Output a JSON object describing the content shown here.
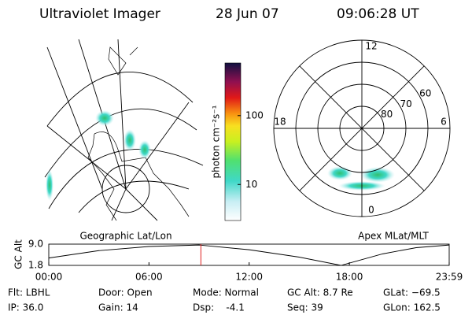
{
  "header": {
    "title": "Ultraviolet Imager",
    "date": "28 Jun 07",
    "time": "09:06:28 UT"
  },
  "geo_panel": {
    "label": "Geographic Lat/Lon"
  },
  "colorbar": {
    "label": "photon cm⁻²s⁻¹",
    "range": [
      3,
      580
    ],
    "log": true,
    "ticks": [
      10,
      100
    ]
  },
  "polar_panel": {
    "label": "Apex MLat/MLT",
    "min_lat": 50,
    "rings": [
      80,
      70,
      60
    ],
    "mlt_labels": [
      {
        "angle": 0,
        "label": "12"
      },
      {
        "angle": 90,
        "label": "6"
      },
      {
        "angle": 180,
        "label": "0"
      },
      {
        "angle": 270,
        "label": "18"
      }
    ]
  },
  "altitude": {
    "ylabel": "GC Alt",
    "ylim": [
      1.8,
      9
    ],
    "yticks": [
      {
        "value": 9,
        "label": "9.0"
      },
      1.8
    ],
    "xlim": [
      0,
      23.98
    ],
    "xticks": [
      {
        "value": 0,
        "label": "00:00"
      },
      {
        "value": 6,
        "label": "06:00"
      },
      {
        "value": 12,
        "label": "12:00"
      },
      {
        "value": 18,
        "label": "18:00"
      },
      {
        "value": 23.98,
        "label": "23:59"
      }
    ],
    "x": [
      0,
      3,
      6,
      9,
      12,
      15,
      17.5,
      20,
      22,
      23.98
    ],
    "values": [
      4.3,
      6.8,
      8.2,
      8.7,
      7.1,
      4.6,
      1.8,
      5.7,
      7.8,
      8.7
    ],
    "marker_hour": 9.11,
    "marker_color": "#e02020"
  },
  "info": [
    [
      "Flt: LBHL",
      "Door: Open",
      "Mode: Normal",
      "GC Alt: 8.7 Re",
      "GLat: −69.5"
    ],
    [
      "IP: 36.0",
      "Gain: 14",
      "Dsp:    -4.1",
      "Seq: 39",
      "GLon: 162.5"
    ]
  ]
}
